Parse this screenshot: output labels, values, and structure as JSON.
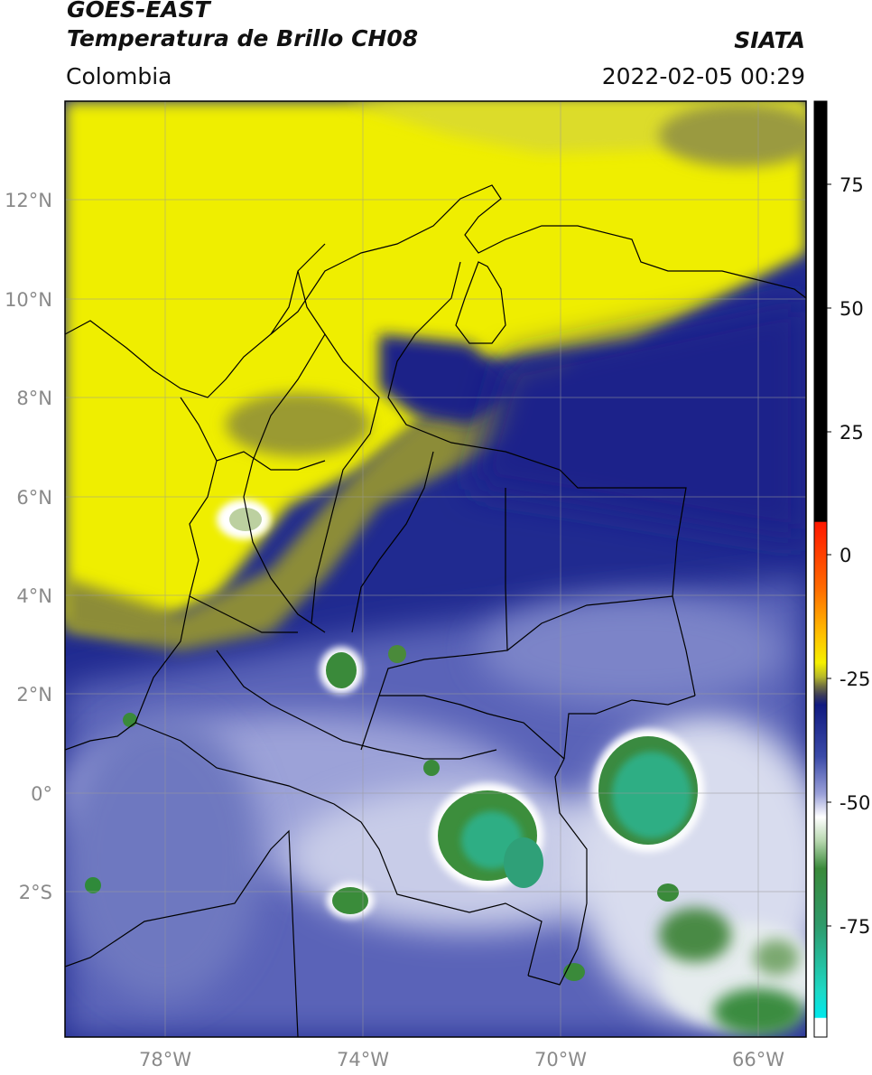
{
  "header": {
    "satellite": "GOES-EAST",
    "product": "Temperatura de Brillo CH08",
    "region": "Colombia",
    "organization": "SIATA",
    "timestamp": "2022-02-05 00:29"
  },
  "map": {
    "lat_labels": [
      "12°N",
      "10°N",
      "8°N",
      "6°N",
      "4°N",
      "2°N",
      "0°",
      "2°S"
    ],
    "lon_labels": [
      "78°W",
      "74°W",
      "70°W",
      "66°W"
    ],
    "extent": {
      "lon_min": -80,
      "lon_max": -65,
      "lat_min": -4.5,
      "lat_max": 14
    }
  },
  "colorbar": {
    "ticks": [
      "75",
      "50",
      "25",
      "0",
      "-25",
      "-50",
      "-75"
    ],
    "range": [
      -93,
      93
    ],
    "colors": {
      "black": "#000000",
      "red": "#ff2000",
      "orange": "#ff9a00",
      "yellow": "#f2f000",
      "olive": "#8a8a20",
      "navy": "#101a80",
      "periwinkle": "#8a90cc",
      "white": "#ffffff",
      "green": "#2f8a2f",
      "teal": "#2fc89a",
      "cyan": "#00e0e0"
    }
  }
}
